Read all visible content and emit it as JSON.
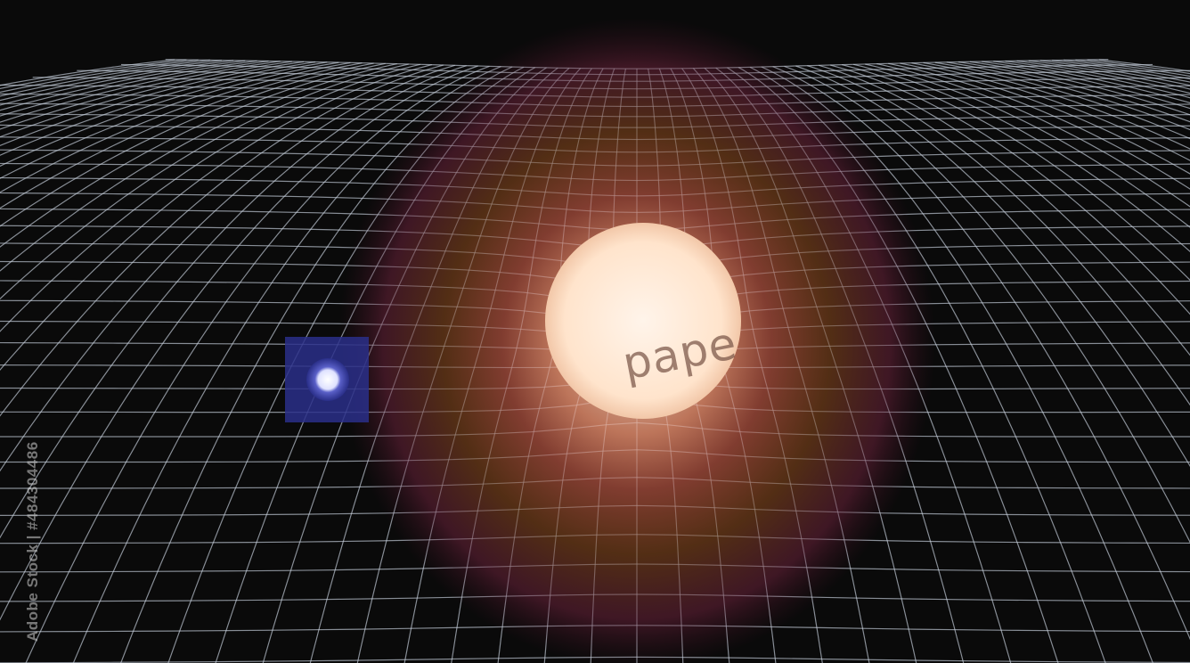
{
  "scene": {
    "grid_color": "#cfd8e6",
    "background_color": "#0a0a0a",
    "star_colors": {
      "halo_outer": "#5a1e32",
      "halo_mid": "#6b3a18",
      "halo_inner": "#a04a3a",
      "core": "#ffe8d6"
    },
    "companion_colors": {
      "halo": "#2a2f8a",
      "core": "#eef0ff"
    }
  },
  "watermark": {
    "word": "pape",
    "credit": "Adobe Stock | #484304486"
  }
}
